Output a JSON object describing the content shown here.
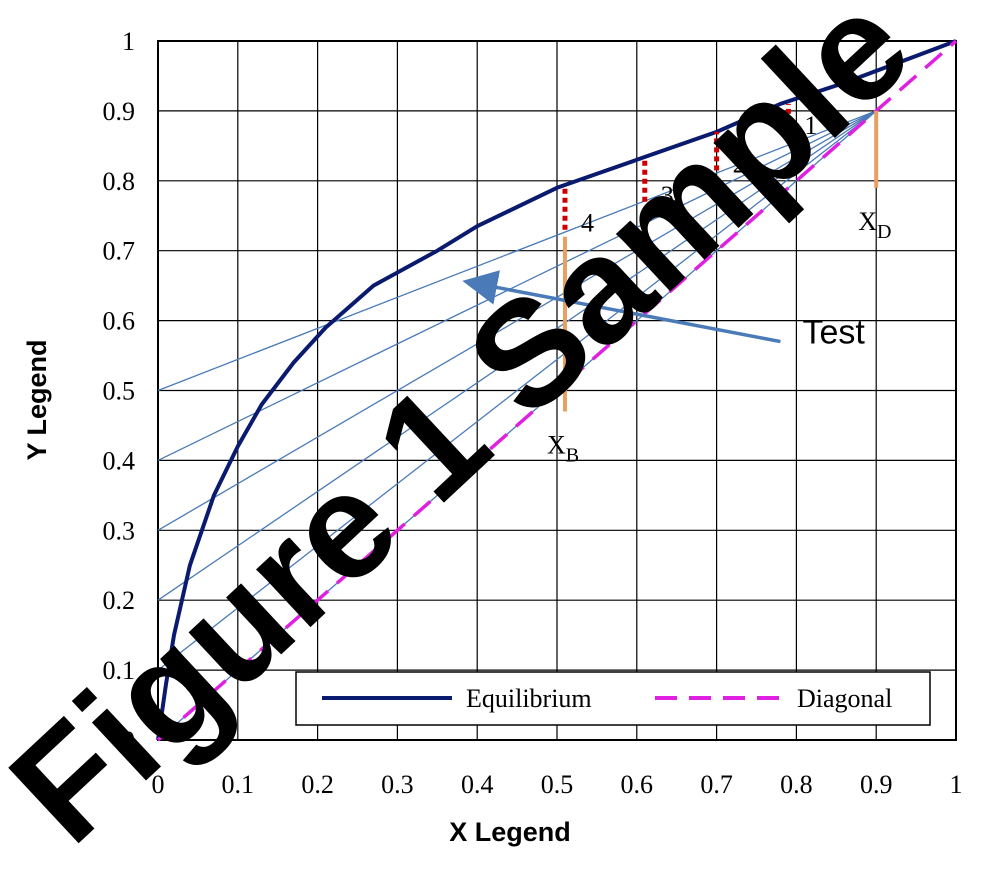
{
  "chart_data": {
    "type": "line",
    "xlabel": "X Legend",
    "ylabel": "Y Legend",
    "xlim": [
      0,
      1
    ],
    "ylim": [
      0,
      1
    ],
    "xticks": [
      "0",
      "0.1",
      "0.2",
      "0.3",
      "0.4",
      "0.5",
      "0.6",
      "0.7",
      "0.8",
      "0.9",
      "1"
    ],
    "yticks": [
      "0",
      "0.1",
      "0.2",
      "0.3",
      "0.4",
      "0.5",
      "0.6",
      "0.7",
      "0.8",
      "0.9",
      "1"
    ],
    "grid": true,
    "legend_position": "bottom",
    "series": [
      {
        "name": "Equilibrium",
        "color": "#0a1a6e",
        "style": "solid",
        "x": [
          0,
          0.01,
          0.02,
          0.04,
          0.07,
          0.1,
          0.13,
          0.17,
          0.21,
          0.27,
          0.35,
          0.4,
          0.5,
          0.6,
          0.7,
          0.78,
          0.86,
          0.93,
          1.0
        ],
        "y": [
          0,
          0.08,
          0.15,
          0.25,
          0.35,
          0.42,
          0.48,
          0.54,
          0.59,
          0.65,
          0.7,
          0.735,
          0.79,
          0.83,
          0.87,
          0.91,
          0.94,
          0.97,
          1.0
        ]
      },
      {
        "name": "Diagonal",
        "color": "#e020e0",
        "style": "dashed",
        "x": [
          0,
          1
        ],
        "y": [
          0,
          1
        ]
      }
    ],
    "operating_lines": {
      "color": "#4a7ab8",
      "end": [
        0.9,
        0.9
      ],
      "intercepts": [
        0.5,
        0.4,
        0.3,
        0.2,
        0.1,
        0
      ]
    },
    "steps": [
      {
        "label": "1",
        "x": 0.79,
        "y_low": 0.87,
        "y_high": 0.91
      },
      {
        "label": "2",
        "x": 0.7,
        "y_low": 0.815,
        "y_high": 0.87
      },
      {
        "label": "3",
        "x": 0.61,
        "y_low": 0.77,
        "y_high": 0.83
      },
      {
        "label": "4",
        "x": 0.51,
        "y_low": 0.73,
        "y_high": 0.79
      }
    ],
    "step_color": "#cc0000",
    "markers": [
      {
        "label_main": "X",
        "label_sub": "B",
        "x": 0.51,
        "y_low": 0.47,
        "y_high": 0.72
      },
      {
        "label_main": "X",
        "label_sub": "D",
        "x": 0.9,
        "y_low": 0.79,
        "y_high": 0.9
      }
    ],
    "marker_color": "#e8a060",
    "annotation": {
      "text": "Test",
      "color": "#4a7ab8",
      "arrow_from": [
        0.78,
        0.57
      ],
      "arrow_to": [
        0.39,
        0.655
      ]
    },
    "watermark": "Figure 1 Sample"
  }
}
